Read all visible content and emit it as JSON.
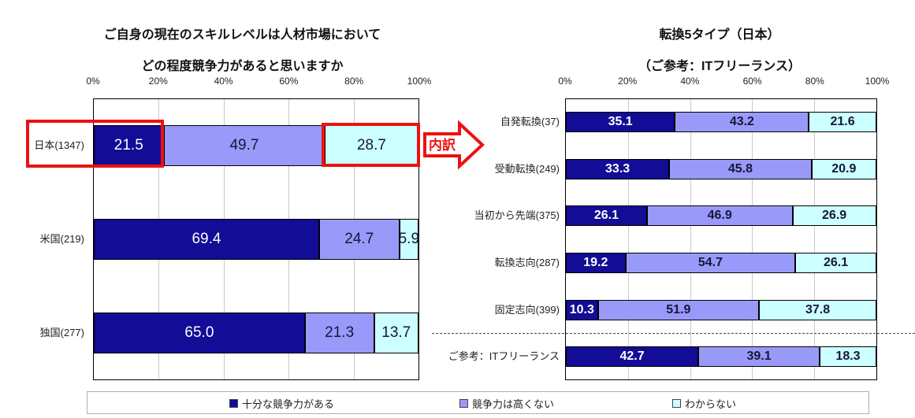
{
  "left_chart": {
    "title_line1": "ご自身の現在のスキルレベルは人材市場において",
    "title_line2": "どの程度競争力があると思いますか",
    "axis_ticks": [
      "0%",
      "20%",
      "40%",
      "60%",
      "80%",
      "100%"
    ],
    "rows": [
      {
        "label": "日本(1347)",
        "values": [
          "21.5",
          "49.7",
          "28.7"
        ]
      },
      {
        "label": "米国(219)",
        "values": [
          "69.4",
          "24.7",
          "5.9"
        ]
      },
      {
        "label": "独国(277)",
        "values": [
          "65.0",
          "21.3",
          "13.7"
        ]
      }
    ]
  },
  "right_chart": {
    "title_line1": "転換5タイプ（日本）",
    "title_line2": "（ご参考：ITフリーランス）",
    "axis_ticks": [
      "0%",
      "20%",
      "40%",
      "60%",
      "80%",
      "100%"
    ],
    "rows": [
      {
        "label": "自発転換(37)",
        "values": [
          "35.1",
          "43.2",
          "21.6"
        ]
      },
      {
        "label": "受動転換(249)",
        "values": [
          "33.3",
          "45.8",
          "20.9"
        ]
      },
      {
        "label": "当初から先端(375)",
        "values": [
          "26.1",
          "46.9",
          "26.9"
        ]
      },
      {
        "label": "転換志向(287)",
        "values": [
          "19.2",
          "54.7",
          "26.1"
        ]
      },
      {
        "label": "固定志向(399)",
        "values": [
          "10.3",
          "51.9",
          "37.8"
        ]
      },
      {
        "label": "ご参考：ITフリーランス",
        "values": [
          "42.7",
          "39.1",
          "18.3"
        ]
      }
    ]
  },
  "annotation": {
    "arrow_label": "内訳"
  },
  "legend": [
    {
      "label": "十分な競争力がある",
      "color": "#120c96"
    },
    {
      "label": "競争力は高くない",
      "color": "#9999fa"
    },
    {
      "label": "わからない",
      "color": "#ccffff"
    }
  ],
  "colors": {
    "series": [
      "#120c96",
      "#9999fa",
      "#ccffff"
    ],
    "value_on_dark": "#ffffff",
    "value_on_light": "#16163a",
    "highlight_red": "#ee1111",
    "gridline": "#c9c9c9"
  },
  "chart_data": [
    {
      "type": "bar",
      "orientation": "horizontal",
      "stacked": true,
      "title": "ご自身の現在のスキルレベルは人材市場において どの程度競争力があると思いますか",
      "categories": [
        "日本(1347)",
        "米国(219)",
        "独国(277)"
      ],
      "series": [
        {
          "name": "十分な競争力がある",
          "values": [
            21.5,
            69.4,
            65.0
          ]
        },
        {
          "name": "競争力は高くない",
          "values": [
            49.7,
            24.7,
            21.3
          ]
        },
        {
          "name": "わからない",
          "values": [
            28.7,
            5.9,
            13.7
          ]
        }
      ],
      "xlim": [
        0,
        100
      ],
      "x_ticks": [
        "0%",
        "20%",
        "40%",
        "60%",
        "80%",
        "100%"
      ],
      "grid": true,
      "unit": "%",
      "legend_position": "bottom"
    },
    {
      "type": "bar",
      "orientation": "horizontal",
      "stacked": true,
      "title": "転換5タイプ（日本）（ご参考：ITフリーランス）",
      "categories": [
        "自発転換(37)",
        "受動転換(249)",
        "当初から先端(375)",
        "転換志向(287)",
        "固定志向(399)",
        "ご参考：ITフリーランス"
      ],
      "series": [
        {
          "name": "十分な競争力がある",
          "values": [
            35.1,
            33.3,
            26.1,
            19.2,
            10.3,
            42.7
          ]
        },
        {
          "name": "競争力は高くない",
          "values": [
            43.2,
            45.8,
            46.9,
            54.7,
            51.9,
            39.1
          ]
        },
        {
          "name": "わからない",
          "values": [
            21.6,
            20.9,
            26.9,
            26.1,
            37.8,
            18.3
          ]
        }
      ],
      "xlim": [
        0,
        100
      ],
      "x_ticks": [
        "0%",
        "20%",
        "40%",
        "60%",
        "80%",
        "100%"
      ],
      "grid": true,
      "unit": "%",
      "legend_position": "bottom"
    }
  ]
}
